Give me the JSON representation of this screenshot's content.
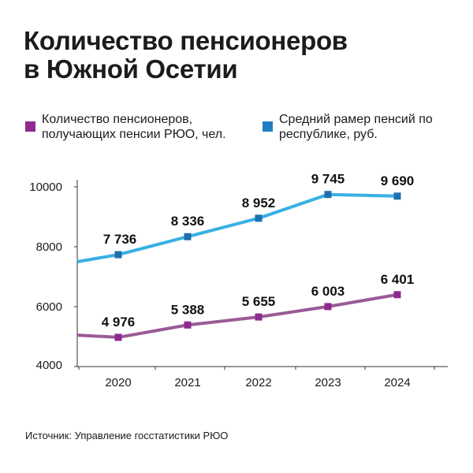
{
  "title": {
    "line1": "Количество пенсионеров",
    "line2": "в Южной Осетии"
  },
  "legend": [
    {
      "name": "pensioners",
      "lines": [
        "Количество пенсионеров,",
        "получающих пенсии РЮО, чел."
      ],
      "color": "#8e2a8f"
    },
    {
      "name": "avg-pension",
      "lines": [
        "Средний рамер пенсий по",
        "республике, руб."
      ],
      "color": "#1f7fc1"
    }
  ],
  "source": "Источник: Управление госстатистики РЮО",
  "colors": {
    "pensioners_line": "#9a5a96",
    "pensioners_marker": "#8e2a8f",
    "avg_line": "#38b0e2",
    "avg_marker": "#1f6fae",
    "axis": "#333333"
  },
  "chart_data": {
    "type": "line",
    "title": "Количество пенсионеров в Южной Осетии",
    "categories": [
      "2020",
      "2021",
      "2022",
      "2023",
      "2024"
    ],
    "ylim": [
      4000,
      10000
    ],
    "yticks": [
      "10000",
      "8000",
      "6000",
      "4000"
    ],
    "ytick_values": [
      10000,
      8000,
      6000,
      4000
    ],
    "grid": false,
    "series": [
      {
        "name": "Средний рамер пенсий по республике, руб.",
        "values": [
          7736,
          8336,
          8952,
          9745,
          9690
        ],
        "labels": [
          "7 736",
          "8 336",
          "8 952",
          "9 745",
          "9 690"
        ],
        "start_value": 7500
      },
      {
        "name": "Количество пенсионеров, получающих пенсии РЮО, чел.",
        "values": [
          4976,
          5388,
          5655,
          6003,
          6401
        ],
        "labels": [
          "4 976",
          "5 388",
          "5 655",
          "6 003",
          "6 401"
        ],
        "start_value": 5050
      }
    ]
  }
}
